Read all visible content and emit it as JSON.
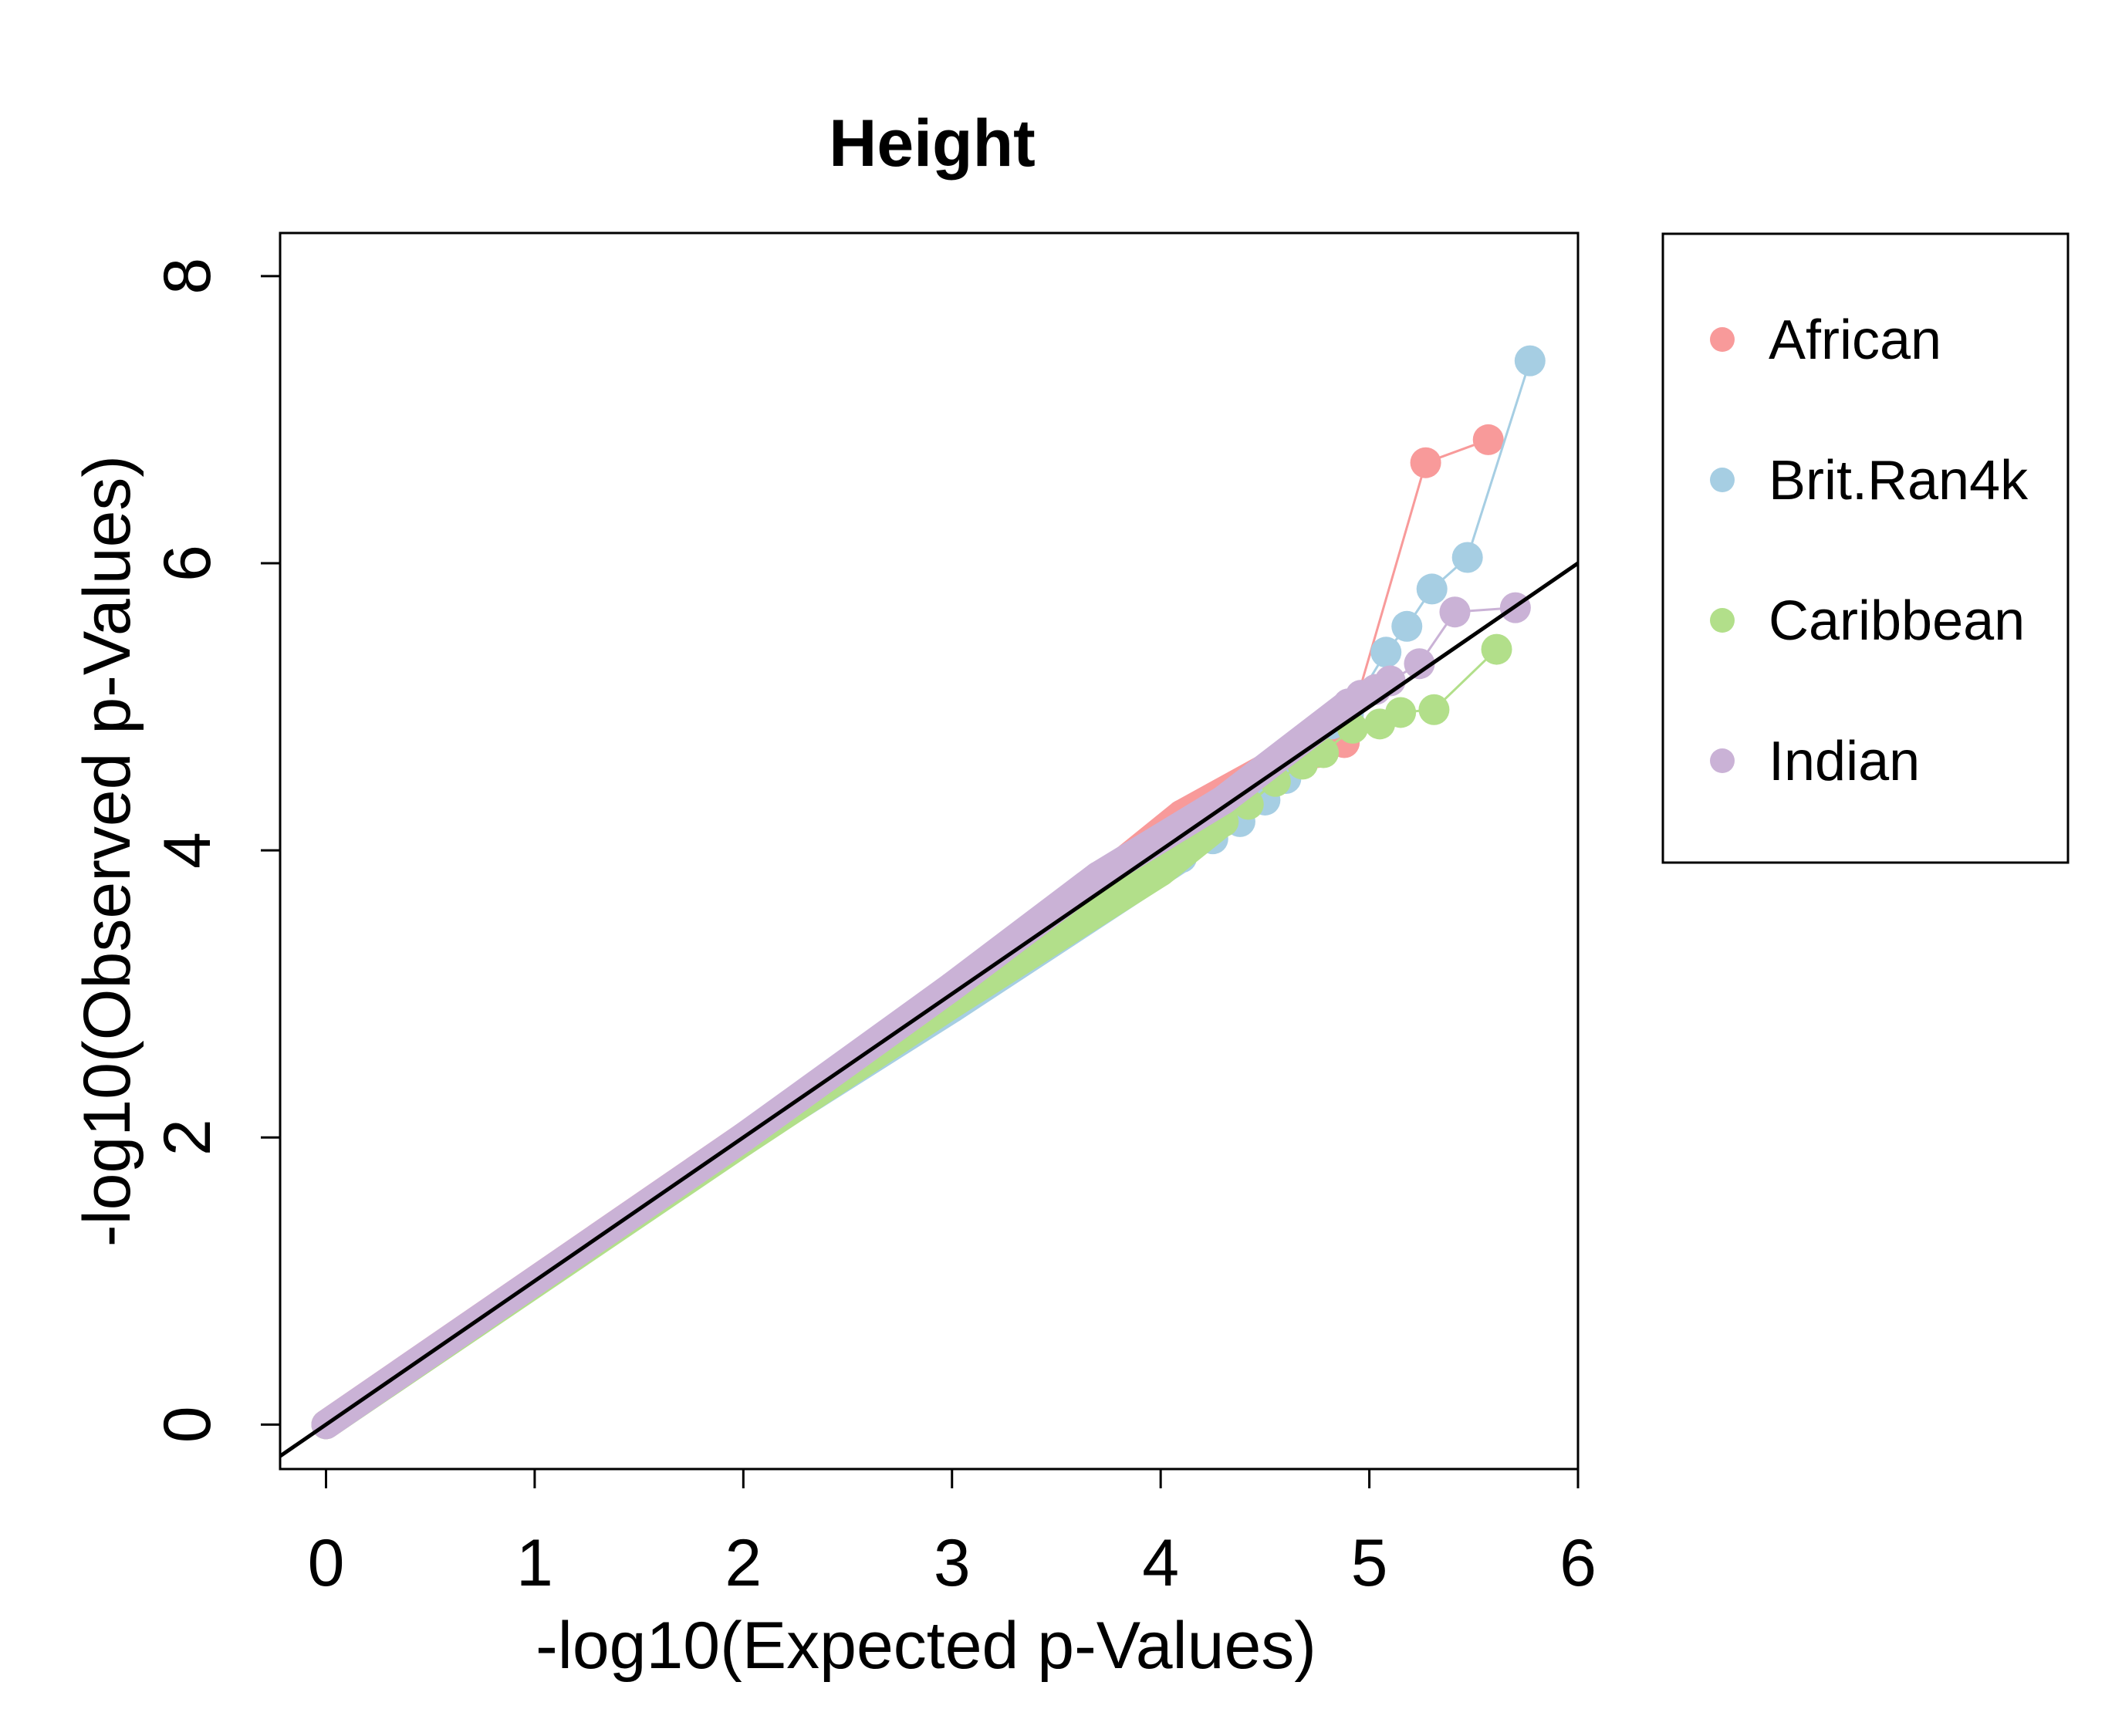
{
  "chart_data": {
    "type": "scatter",
    "title": "Height",
    "xlabel": "-log10(Expected p-Values)",
    "ylabel": "-log10(Observed p-Values)",
    "xlim": [
      -0.22,
      6.0
    ],
    "ylim": [
      -0.31,
      8.3
    ],
    "x_ticks": [
      0,
      1,
      2,
      3,
      4,
      5,
      6
    ],
    "y_ticks": [
      0,
      2,
      4,
      6,
      8
    ],
    "x_tick_labels": [
      "0",
      "1",
      "2",
      "3",
      "4",
      "5",
      "6"
    ],
    "y_tick_labels": [
      "0",
      "2",
      "4",
      "6",
      "8"
    ],
    "reference_line": {
      "slope": 1,
      "intercept": 0,
      "color": "#000000"
    },
    "legend": {
      "position": "right",
      "boxed": true
    },
    "series": [
      {
        "name": "African",
        "color": "#F89A9A",
        "dense_segments": [
          [
            0,
            0,
            2.4,
            2.4
          ],
          [
            2.4,
            2.4,
            3.7,
            3.78
          ],
          [
            3.7,
            3.78,
            4.1,
            4.25
          ],
          [
            4.1,
            4.25,
            4.6,
            4.65
          ]
        ],
        "points": [
          [
            4.08,
            4.2
          ],
          [
            4.15,
            4.28
          ],
          [
            4.22,
            4.32
          ],
          [
            4.35,
            4.42
          ],
          [
            4.45,
            4.52
          ],
          [
            4.55,
            4.62
          ],
          [
            4.65,
            4.65
          ],
          [
            4.75,
            4.68
          ],
          [
            4.88,
            4.75
          ],
          [
            5.27,
            6.7
          ],
          [
            5.57,
            6.86
          ]
        ]
      },
      {
        "name": "Brit.Ran4k",
        "color": "#A6CEE3",
        "dense_segments": [
          [
            0,
            0,
            2.0,
            1.98
          ],
          [
            2.0,
            1.98,
            3.0,
            2.9
          ],
          [
            3.0,
            2.9,
            4.1,
            3.95
          ]
        ],
        "points": [
          [
            4.1,
            3.95
          ],
          [
            4.25,
            4.08
          ],
          [
            4.38,
            4.2
          ],
          [
            4.5,
            4.35
          ],
          [
            4.6,
            4.5
          ],
          [
            4.62,
            4.68
          ],
          [
            4.72,
            4.75
          ],
          [
            4.82,
            4.88
          ],
          [
            4.9,
            4.95
          ],
          [
            5.08,
            5.38
          ],
          [
            5.18,
            5.56
          ],
          [
            5.3,
            5.82
          ],
          [
            5.47,
            6.04
          ],
          [
            5.77,
            7.41
          ]
        ]
      },
      {
        "name": "Caribbean",
        "color": "#B2DF8A",
        "dense_segments": [
          [
            0,
            0,
            2.0,
            1.97
          ],
          [
            2.0,
            1.97,
            3.0,
            2.93
          ],
          [
            3.0,
            2.93,
            4.0,
            3.85
          ],
          [
            4.0,
            3.85,
            4.3,
            4.2
          ]
        ],
        "points": [
          [
            4.3,
            4.2
          ],
          [
            4.42,
            4.32
          ],
          [
            4.55,
            4.48
          ],
          [
            4.68,
            4.6
          ],
          [
            4.78,
            4.68
          ],
          [
            4.92,
            4.85
          ],
          [
            5.05,
            4.88
          ],
          [
            5.15,
            4.96
          ],
          [
            5.31,
            4.98
          ],
          [
            5.61,
            5.4
          ]
        ]
      },
      {
        "name": "Indian",
        "color": "#CAB2D6",
        "dense_segments": [
          [
            0,
            0,
            2.0,
            2.0
          ],
          [
            2.0,
            2.0,
            3.0,
            3.05
          ],
          [
            3.0,
            3.05,
            3.7,
            3.82
          ],
          [
            3.7,
            3.82,
            4.3,
            4.35
          ],
          [
            4.3,
            4.35,
            4.9,
            5.02
          ]
        ],
        "points": [
          [
            4.9,
            5.02
          ],
          [
            4.96,
            5.08
          ],
          [
            5.03,
            5.12
          ],
          [
            5.1,
            5.18
          ],
          [
            5.24,
            5.3
          ],
          [
            5.41,
            5.66
          ],
          [
            5.7,
            5.69
          ]
        ]
      }
    ]
  }
}
